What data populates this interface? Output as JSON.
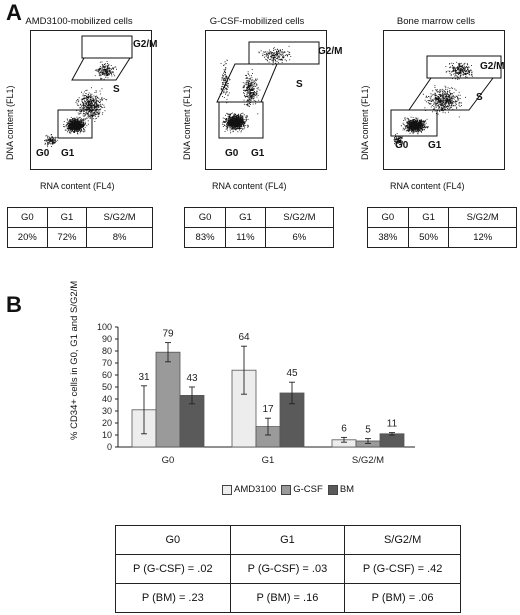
{
  "panel_a": {
    "letter": "A",
    "ylabel": "DNA content (FL1)",
    "xlabel": "RNA content (FL4)",
    "plots": [
      {
        "title": "AMD3100-mobilized cells",
        "gates": {
          "g0": "G0",
          "g1": "G1",
          "s": "S",
          "g2m": "G2/M"
        },
        "table": {
          "headers": [
            "G0",
            "G1",
            "S/G2/M"
          ],
          "values": [
            "20%",
            "72%",
            "8%"
          ]
        }
      },
      {
        "title": "G-CSF-mobilized cells",
        "gates": {
          "g0": "G0",
          "g1": "G1",
          "s": "S",
          "g2m": "G2/M"
        },
        "table": {
          "headers": [
            "G0",
            "G1",
            "S/G2/M"
          ],
          "values": [
            "83%",
            "11%",
            "6%"
          ]
        }
      },
      {
        "title": "Bone marrow cells",
        "gates": {
          "g0": "G0",
          "g1": "G1",
          "s": "S",
          "g2m": "G2/M"
        },
        "table": {
          "headers": [
            "G0",
            "G1",
            "S/G2/M"
          ],
          "values": [
            "38%",
            "50%",
            "12%"
          ]
        }
      }
    ]
  },
  "panel_b": {
    "letter": "B",
    "pvalue_table": {
      "headers": [
        "G0",
        "G1",
        "S/G2/M"
      ],
      "rows": [
        [
          "P (G-CSF) = .02",
          "P (G-CSF) = .03",
          "P (G-CSF) = .42"
        ],
        [
          "P (BM) = .23",
          "P (BM) = .16",
          "P (BM) = .06"
        ]
      ]
    }
  },
  "chart_data": [
    {
      "type": "bar",
      "ylabel": "% CD34+ cells in G0, G1 and S/G2/M",
      "xlabel": "",
      "ylim": [
        0,
        100
      ],
      "yticks": [
        0,
        10,
        20,
        30,
        40,
        50,
        60,
        70,
        80,
        90,
        100
      ],
      "categories": [
        "G0",
        "G1",
        "S/G2/M"
      ],
      "series": [
        {
          "name": "AMD3100",
          "values": [
            31,
            64,
            6
          ],
          "errors": [
            20,
            20,
            2
          ],
          "color": "#ededed"
        },
        {
          "name": "G-CSF",
          "values": [
            79,
            17,
            5
          ],
          "errors": [
            8,
            7,
            2
          ],
          "color": "#9a9a9a"
        },
        {
          "name": "BM",
          "values": [
            43,
            45,
            11
          ],
          "errors": [
            7,
            9,
            1
          ],
          "color": "#5a5a5a"
        }
      ],
      "data_labels": [
        "31",
        "79",
        "43",
        "64",
        "17",
        "45",
        "6",
        "5",
        "11"
      ],
      "legend": "bottom"
    }
  ]
}
